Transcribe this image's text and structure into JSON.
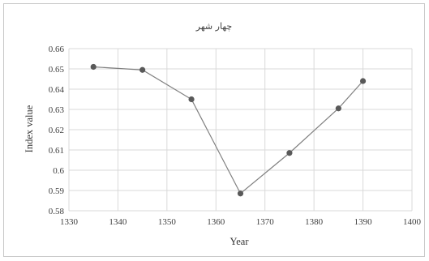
{
  "chart_data": {
    "type": "scatter",
    "title": "چهار شهر",
    "xlabel": "Year",
    "ylabel": "Index value",
    "xlim": [
      1330,
      1400
    ],
    "ylim": [
      0.58,
      0.66
    ],
    "x_ticks": [
      "1330",
      "1340",
      "1350",
      "1360",
      "1370",
      "1380",
      "1390",
      "1400"
    ],
    "y_ticks": [
      "0.58",
      "0.59",
      "0.6",
      "0.61",
      "0.62",
      "0.63",
      "0.64",
      "0.65",
      "0.66"
    ],
    "grid": true,
    "series": [
      {
        "x": [
          1335,
          1345,
          1355,
          1365,
          1375,
          1385,
          1390
        ],
        "y": [
          0.651,
          0.6495,
          0.635,
          0.5885,
          0.6085,
          0.6305,
          0.644
        ]
      }
    ],
    "line_color": "#7f7f7f",
    "marker_color": "#595959"
  }
}
